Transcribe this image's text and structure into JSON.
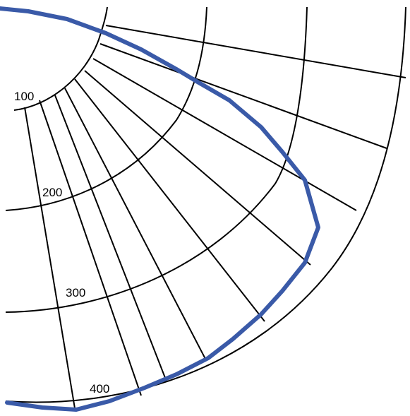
{
  "map": {
    "ring_labels": [
      "100",
      "200",
      "300",
      "400"
    ],
    "route_color": "#3a5aa8",
    "grid_color": "#000000"
  }
}
